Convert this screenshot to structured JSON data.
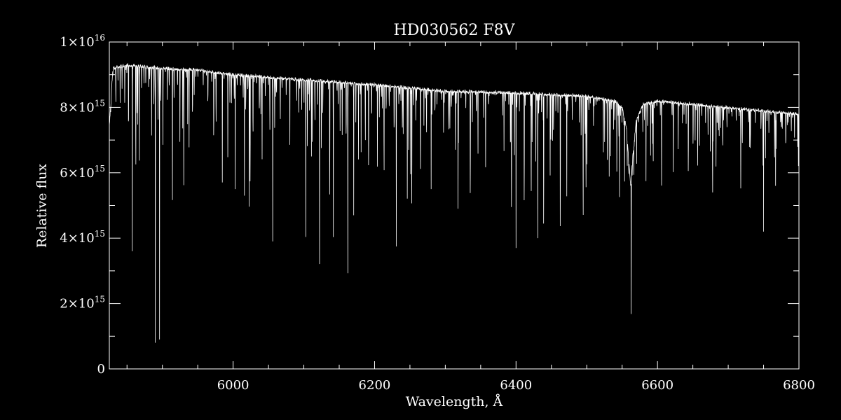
{
  "colors": {
    "background": "#000000",
    "foreground": "#ffffff"
  },
  "chart_data": {
    "type": "line",
    "title": "HD030562  F8V",
    "xlabel": "Wavelength, Å",
    "ylabel": "Relative flux",
    "xlim": [
      5825,
      6800
    ],
    "ylim": [
      0,
      1e+16
    ],
    "x_ticks": [
      {
        "value": 6000,
        "label": "6000"
      },
      {
        "value": 6200,
        "label": "6200"
      },
      {
        "value": 6400,
        "label": "6400"
      },
      {
        "value": 6600,
        "label": "6600"
      },
      {
        "value": 6800,
        "label": "6800"
      }
    ],
    "x_minor_step": 50,
    "y_ticks": [
      {
        "value": 0,
        "base": "0",
        "exp": ""
      },
      {
        "value": 2000000000000000.0,
        "base": "2×10",
        "exp": "15"
      },
      {
        "value": 4000000000000000.0,
        "base": "4×10",
        "exp": "15"
      },
      {
        "value": 6000000000000000.0,
        "base": "6×10",
        "exp": "15"
      },
      {
        "value": 8000000000000000.0,
        "base": "8×10",
        "exp": "15"
      },
      {
        "value": 1e+16,
        "base": "1×10",
        "exp": "16"
      }
    ],
    "y_minor_step": 1000000000000000.0,
    "grid": false,
    "series": [
      {
        "continuum": [
          [
            5825,
            7400000000000000.0
          ],
          [
            5830,
            9200000000000000.0
          ],
          [
            5850,
            9300000000000000.0
          ],
          [
            5900,
            9200000000000000.0
          ],
          [
            5950,
            9150000000000000.0
          ],
          [
            6000,
            9000000000000000.0
          ],
          [
            6100,
            8850000000000000.0
          ],
          [
            6200,
            8700000000000000.0
          ],
          [
            6300,
            8500000000000000.0
          ],
          [
            6400,
            8450000000000000.0
          ],
          [
            6500,
            8350000000000000.0
          ],
          [
            6540,
            8200000000000000.0
          ],
          [
            6550,
            8000000000000000.0
          ],
          [
            6556,
            7400000000000000.0
          ],
          [
            6560,
            6200000000000000.0
          ],
          [
            6562,
            5600000000000000.0
          ],
          [
            6565,
            6500000000000000.0
          ],
          [
            6570,
            7600000000000000.0
          ],
          [
            6580,
            8100000000000000.0
          ],
          [
            6600,
            8200000000000000.0
          ],
          [
            6700,
            8000000000000000.0
          ],
          [
            6800,
            7800000000000000.0
          ]
        ],
        "absorption_lines": [
          [
            5890.0,
            800000000000000.0
          ],
          [
            5896.0,
            900000000000000.0
          ],
          [
            5857.5,
            3600000000000000.0
          ],
          [
            5862.4,
            5000000000000000.0
          ],
          [
            5914.2,
            4800000000000000.0
          ],
          [
            5930.2,
            5300000000000000.0
          ],
          [
            5984.8,
            5400000000000000.0
          ],
          [
            6003.0,
            5500000000000000.0
          ],
          [
            6016.0,
            5300000000000000.0
          ],
          [
            6022.8,
            4600000000000000.0
          ],
          [
            6024.1,
            4400000000000000.0
          ],
          [
            6056.0,
            3900000000000000.0
          ],
          [
            6102.7,
            3600000000000000.0
          ],
          [
            6122.2,
            2700000000000000.0
          ],
          [
            6136.6,
            3900000000000000.0
          ],
          [
            6141.7,
            3600000000000000.0
          ],
          [
            6162.2,
            2400000000000000.0
          ],
          [
            6170.5,
            4700000000000000.0
          ],
          [
            6191.6,
            5200000000000000.0
          ],
          [
            6213.4,
            5000000000000000.0
          ],
          [
            6230.7,
            3300000000000000.0
          ],
          [
            6246.3,
            4900000000000000.0
          ],
          [
            6252.6,
            3600000000000000.0
          ],
          [
            6265.1,
            5100000000000000.0
          ],
          [
            6280.0,
            5500000000000000.0
          ],
          [
            6318.0,
            4900000000000000.0
          ],
          [
            6335.3,
            5100000000000000.0
          ],
          [
            6393.6,
            3500000000000000.0
          ],
          [
            6400.0,
            3700000000000000.0
          ],
          [
            6411.6,
            3800000000000000.0
          ],
          [
            6421.4,
            4200000000000000.0
          ],
          [
            6430.8,
            3600000000000000.0
          ],
          [
            6439.1,
            2800000000000000.0
          ],
          [
            6462.6,
            2700000000000000.0
          ],
          [
            6471.7,
            5000000000000000.0
          ],
          [
            6494.9,
            3200000000000000.0
          ],
          [
            6498.9,
            4400000000000000.0
          ],
          [
            6546.2,
            5000000000000000.0
          ],
          [
            6562.8,
            1300000000000000.0
          ],
          [
            6593.9,
            5600000000000000.0
          ],
          [
            6643.6,
            5200000000000000.0
          ],
          [
            6677.9,
            4300000000000000.0
          ],
          [
            6717.7,
            5300000000000000.0
          ],
          [
            6750.0,
            4200000000000000.0
          ],
          [
            6767.0,
            5600000000000000.0
          ]
        ]
      }
    ]
  }
}
